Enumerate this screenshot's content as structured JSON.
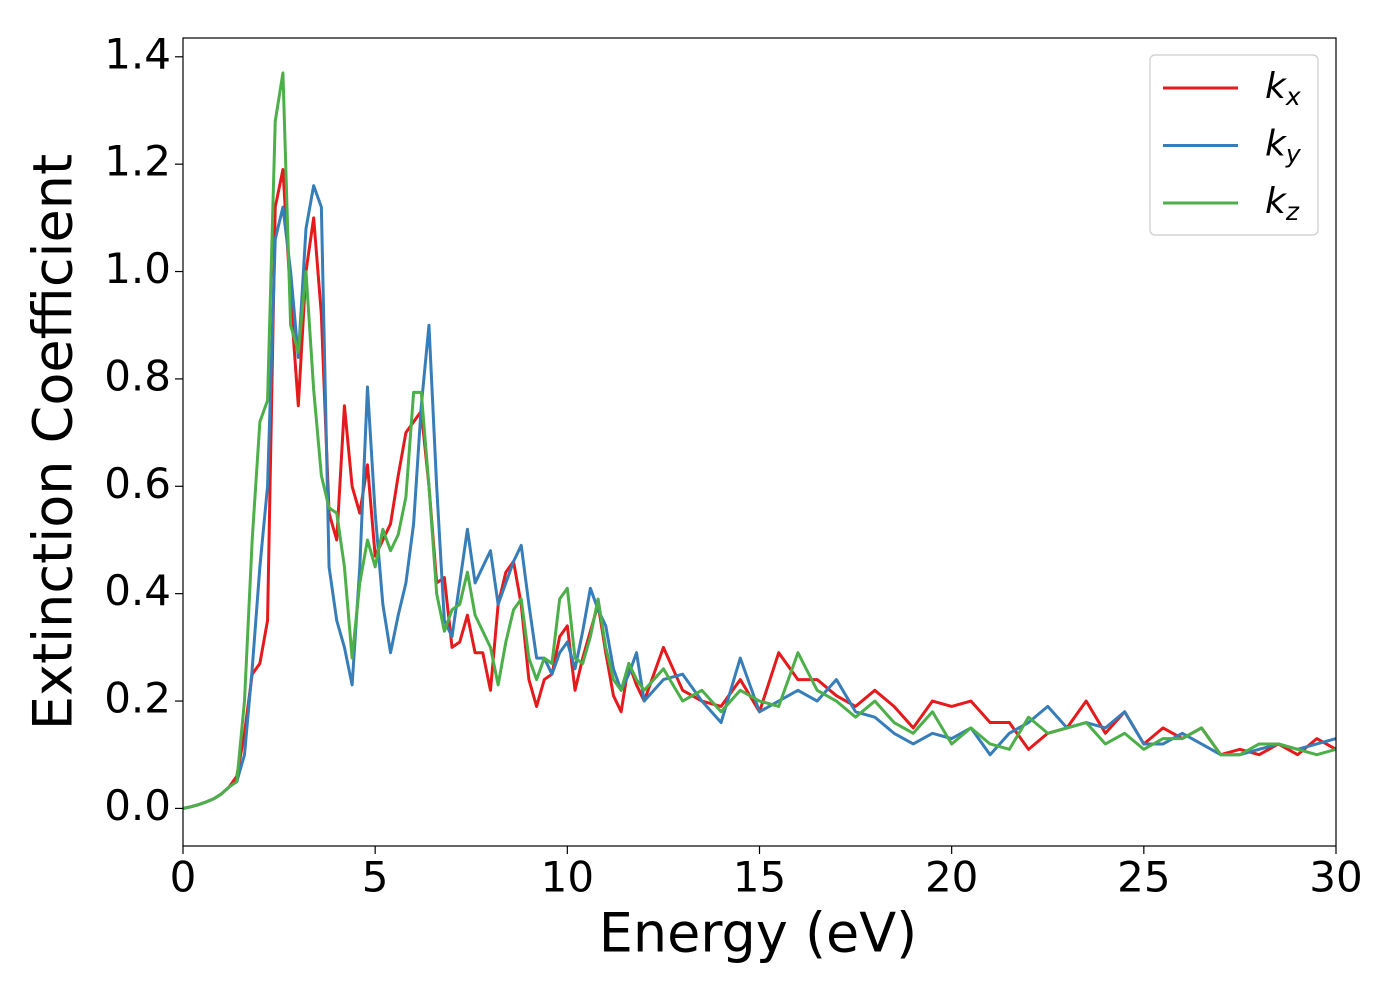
{
  "chart_data": {
    "type": "line",
    "xlabel": "Energy (eV)",
    "ylabel": "Extinction Coefficient",
    "x": [
      0,
      0.2,
      0.4,
      0.6,
      0.8,
      1,
      1.2,
      1.4,
      1.6,
      1.8,
      2,
      2.2,
      2.4,
      2.6,
      2.8,
      3,
      3.2,
      3.4,
      3.6,
      3.8,
      4,
      4.2,
      4.4,
      4.6,
      4.8,
      5,
      5.2,
      5.4,
      5.6,
      5.8,
      6,
      6.2,
      6.4,
      6.6,
      6.8,
      7,
      7.2,
      7.4,
      7.6,
      7.8,
      8,
      8.2,
      8.4,
      8.6,
      8.8,
      9,
      9.2,
      9.4,
      9.6,
      9.8,
      10,
      10.2,
      10.4,
      10.6,
      10.8,
      11,
      11.2,
      11.4,
      11.6,
      11.8,
      12,
      12.5,
      13,
      13.5,
      14,
      14.5,
      15,
      15.5,
      16,
      16.5,
      17,
      17.5,
      18,
      18.5,
      19,
      19.5,
      20,
      20.5,
      21,
      21.5,
      22,
      22.5,
      23,
      23.5,
      24,
      24.5,
      25,
      25.5,
      26,
      26.5,
      27,
      27.5,
      28,
      28.5,
      29,
      29.5,
      30
    ],
    "series": [
      {
        "name": "kx",
        "color": "#e41a1c",
        "values": [
          0,
          0.003,
          0.007,
          0.012,
          0.018,
          0.027,
          0.04,
          0.06,
          0.14,
          0.25,
          0.27,
          0.35,
          1.12,
          1.19,
          0.95,
          0.75,
          1.0,
          1.1,
          0.92,
          0.55,
          0.5,
          0.75,
          0.6,
          0.55,
          0.64,
          0.47,
          0.5,
          0.53,
          0.62,
          0.7,
          0.72,
          0.74,
          0.6,
          0.42,
          0.43,
          0.3,
          0.31,
          0.36,
          0.29,
          0.29,
          0.22,
          0.38,
          0.44,
          0.46,
          0.38,
          0.24,
          0.19,
          0.24,
          0.25,
          0.32,
          0.34,
          0.22,
          0.28,
          0.33,
          0.38,
          0.29,
          0.21,
          0.18,
          0.27,
          0.23,
          0.2,
          0.3,
          0.22,
          0.2,
          0.19,
          0.24,
          0.18,
          0.29,
          0.24,
          0.24,
          0.21,
          0.19,
          0.22,
          0.19,
          0.15,
          0.2,
          0.19,
          0.2,
          0.16,
          0.16,
          0.11,
          0.14,
          0.15,
          0.2,
          0.14,
          0.18,
          0.12,
          0.15,
          0.13,
          0.15,
          0.1,
          0.11,
          0.1,
          0.12,
          0.1,
          0.13,
          0.11
        ]
      },
      {
        "name": "ky",
        "color": "#377eb8",
        "values": [
          0,
          0.003,
          0.007,
          0.012,
          0.018,
          0.027,
          0.04,
          0.05,
          0.1,
          0.26,
          0.45,
          0.6,
          1.06,
          1.12,
          1.0,
          0.84,
          1.08,
          1.16,
          1.12,
          0.45,
          0.35,
          0.3,
          0.23,
          0.45,
          0.785,
          0.55,
          0.38,
          0.29,
          0.36,
          0.42,
          0.53,
          0.75,
          0.9,
          0.6,
          0.35,
          0.32,
          0.42,
          0.52,
          0.42,
          0.45,
          0.48,
          0.38,
          0.42,
          0.46,
          0.49,
          0.38,
          0.28,
          0.28,
          0.25,
          0.29,
          0.31,
          0.26,
          0.33,
          0.41,
          0.37,
          0.34,
          0.26,
          0.22,
          0.25,
          0.29,
          0.2,
          0.24,
          0.25,
          0.2,
          0.16,
          0.28,
          0.18,
          0.2,
          0.22,
          0.2,
          0.24,
          0.18,
          0.17,
          0.14,
          0.12,
          0.14,
          0.13,
          0.15,
          0.1,
          0.14,
          0.16,
          0.19,
          0.15,
          0.16,
          0.15,
          0.18,
          0.12,
          0.12,
          0.14,
          0.12,
          0.1,
          0.1,
          0.11,
          0.12,
          0.11,
          0.12,
          0.13
        ]
      },
      {
        "name": "kz",
        "color": "#4daf4a",
        "values": [
          0,
          0.003,
          0.007,
          0.012,
          0.018,
          0.027,
          0.04,
          0.05,
          0.2,
          0.5,
          0.72,
          0.76,
          1.28,
          1.37,
          0.9,
          0.85,
          1.0,
          0.78,
          0.62,
          0.56,
          0.55,
          0.45,
          0.28,
          0.42,
          0.5,
          0.45,
          0.52,
          0.48,
          0.51,
          0.58,
          0.775,
          0.775,
          0.6,
          0.4,
          0.33,
          0.37,
          0.38,
          0.44,
          0.36,
          0.33,
          0.3,
          0.23,
          0.31,
          0.37,
          0.39,
          0.28,
          0.24,
          0.28,
          0.27,
          0.39,
          0.41,
          0.28,
          0.27,
          0.32,
          0.39,
          0.3,
          0.24,
          0.22,
          0.27,
          0.24,
          0.22,
          0.26,
          0.2,
          0.22,
          0.18,
          0.22,
          0.2,
          0.19,
          0.29,
          0.22,
          0.2,
          0.17,
          0.2,
          0.16,
          0.14,
          0.18,
          0.12,
          0.15,
          0.12,
          0.11,
          0.17,
          0.14,
          0.15,
          0.16,
          0.12,
          0.14,
          0.11,
          0.13,
          0.13,
          0.15,
          0.1,
          0.1,
          0.12,
          0.12,
          0.11,
          0.1,
          0.11
        ]
      }
    ],
    "xlim": [
      0,
      30
    ],
    "xticks": [
      0,
      5,
      10,
      15,
      20,
      25,
      30
    ],
    "ylim": [
      -0.07,
      1.435
    ],
    "yticks": [
      {
        "value": 0,
        "label": "0.0"
      },
      0.2,
      0.4,
      0.6,
      0.8,
      {
        "value": 1,
        "label": "1.0"
      },
      1.2,
      1.4
    ],
    "legend": "upper right"
  }
}
